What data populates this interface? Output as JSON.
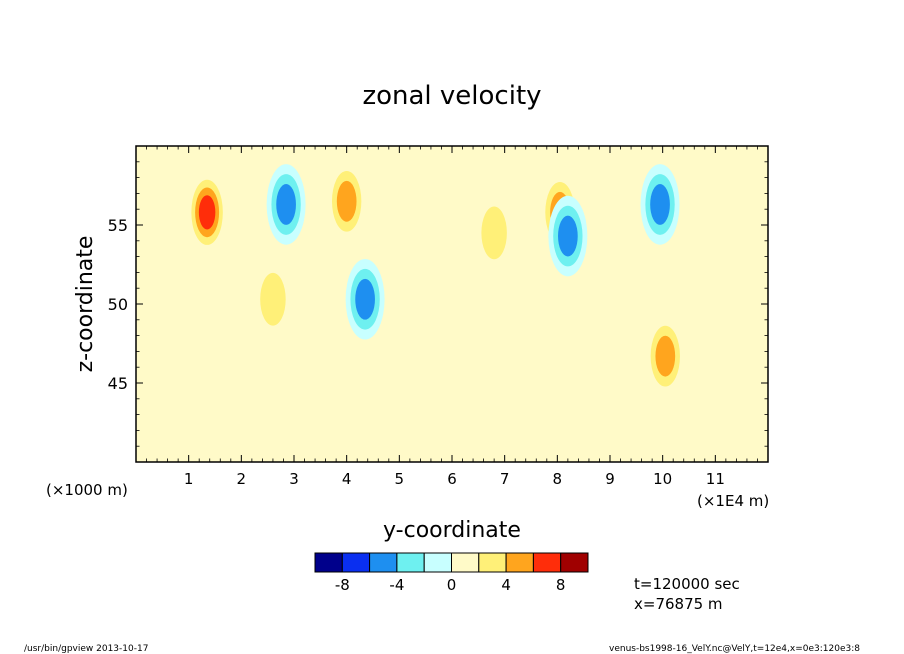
{
  "chart_data": {
    "type": "heatmap",
    "title": "zonal velocity",
    "xlabel": "y-coordinate",
    "ylabel": "z-coordinate",
    "x_unit_left": "(×1000 m)",
    "x_unit_right": "(×1E4 m)",
    "xlim": [
      0,
      12
    ],
    "ylim": [
      40,
      60
    ],
    "x_ticks": [
      "1",
      "2",
      "3",
      "4",
      "5",
      "6",
      "7",
      "8",
      "9",
      "10",
      "11"
    ],
    "y_ticks": [
      "45",
      "50",
      "55"
    ],
    "colorbar": {
      "levels": [
        -10,
        -8,
        -6,
        -4,
        -2,
        0,
        2,
        4,
        6,
        8,
        10
      ],
      "colors": [
        "#00008b",
        "#0a2ff0",
        "#1e8ff0",
        "#6ef0f0",
        "#c8ffff",
        "#fffac8",
        "#fff078",
        "#ffa51e",
        "#ff2d0a",
        "#a00000"
      ],
      "tick_labels": [
        "-8",
        "-4",
        "0",
        "4",
        "8"
      ],
      "tick_values": [
        -8,
        -4,
        0,
        4,
        8
      ]
    },
    "features": [
      {
        "x": 1.35,
        "y": 55.8,
        "value": 7
      },
      {
        "x": 2.85,
        "y": 56.3,
        "value": -5
      },
      {
        "x": 4.0,
        "y": 56.5,
        "value": 5
      },
      {
        "x": 6.8,
        "y": 54.5,
        "value": 4
      },
      {
        "x": 8.05,
        "y": 55.8,
        "value": 5
      },
      {
        "x": 8.2,
        "y": 54.3,
        "value": -5
      },
      {
        "x": 9.95,
        "y": 56.3,
        "value": -6
      },
      {
        "x": 4.35,
        "y": 50.3,
        "value": -5
      },
      {
        "x": 2.6,
        "y": 50.3,
        "value": 3
      },
      {
        "x": 10.05,
        "y": 46.7,
        "value": 6
      }
    ],
    "annotations": [
      "t=120000 sec",
      "x=76875 m"
    ]
  },
  "footer": {
    "left": "/usr/bin/gpview   2013-10-17",
    "right": "venus-bs1998-16_VelY.nc@VelY,t=12e4,x=0e3:120e3:8"
  }
}
